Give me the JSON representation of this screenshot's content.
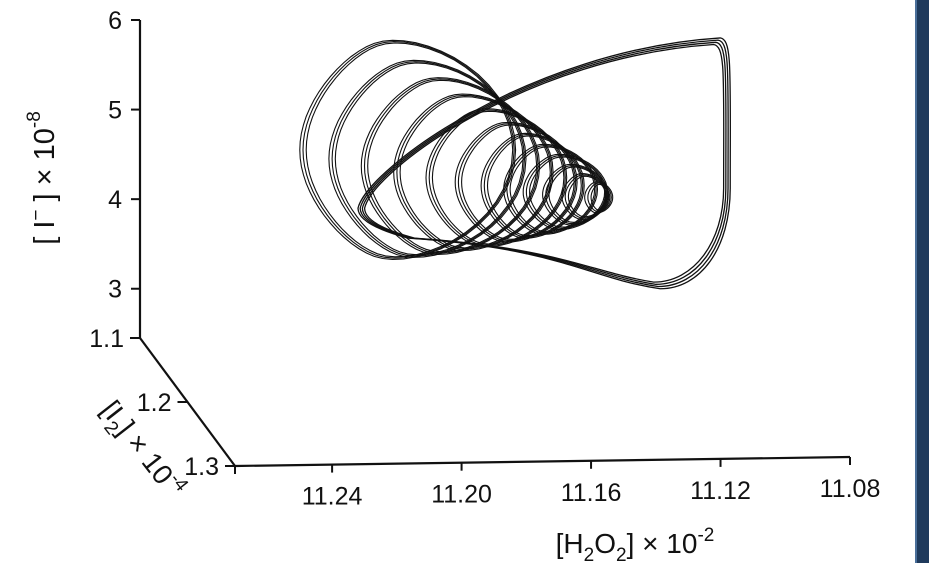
{
  "chart_data": {
    "type": "line",
    "subtype": "3d-phase-portrait",
    "title": "",
    "ink_color": "#111111",
    "frame_color": "#1f3a5c",
    "axes": {
      "x": {
        "label_parts": [
          "[H",
          "2",
          "O",
          "2",
          "] × 10",
          "-2"
        ],
        "ticks": [
          "11.24",
          "11.20",
          "11.16",
          "11.12",
          "11.08"
        ],
        "range": [
          11.27,
          11.08
        ],
        "reversed": true
      },
      "y": {
        "label_parts": [
          "[ I",
          "−",
          " ]  ×  10",
          "-8"
        ],
        "ticks": [
          "3",
          "4",
          "5",
          "6"
        ],
        "range": [
          2.45,
          6.0
        ]
      },
      "z": {
        "label_parts": [
          "[I",
          "2",
          "]  × 10",
          "-4"
        ],
        "ticks": [
          "1.1",
          "1.2",
          "1.3"
        ],
        "range": [
          1.1,
          1.3
        ]
      }
    },
    "series": [
      {
        "description_of_shape": "spiral trajectory converging to a limit cycle",
        "loops": [
          {
            "xc": 11.158,
            "yc": 4.02,
            "rx": 0.002,
            "ry": 0.14,
            "z": 1.205
          },
          {
            "xc": 11.163,
            "yc": 4.03,
            "rx": 0.004,
            "ry": 0.22,
            "z": 1.205
          },
          {
            "xc": 11.167,
            "yc": 4.05,
            "rx": 0.006,
            "ry": 0.3,
            "z": 1.205
          },
          {
            "xc": 11.171,
            "yc": 4.08,
            "rx": 0.008,
            "ry": 0.38,
            "z": 1.205
          },
          {
            "xc": 11.176,
            "yc": 4.11,
            "rx": 0.009,
            "ry": 0.46,
            "z": 1.205
          },
          {
            "xc": 11.182,
            "yc": 4.15,
            "rx": 0.01,
            "ry": 0.54,
            "z": 1.205
          },
          {
            "xc": 11.188,
            "yc": 4.19,
            "rx": 0.012,
            "ry": 0.62,
            "z": 1.205
          },
          {
            "xc": 11.195,
            "yc": 4.24,
            "rx": 0.014,
            "ry": 0.72,
            "z": 1.205
          },
          {
            "xc": 11.203,
            "yc": 4.3,
            "rx": 0.016,
            "ry": 0.82,
            "z": 1.205
          },
          {
            "xc": 11.211,
            "yc": 4.37,
            "rx": 0.018,
            "ry": 0.93,
            "z": 1.205
          },
          {
            "xc": 11.219,
            "yc": 4.45,
            "rx": 0.02,
            "ry": 1.04,
            "z": 1.205
          },
          {
            "xc": 11.226,
            "yc": 4.55,
            "rx": 0.022,
            "ry": 1.16,
            "z": 1.205
          }
        ],
        "limit_cycle_extent": {
          "x_min": 11.232,
          "x_max": 11.117,
          "y_min": 3.0,
          "y_max": 5.8
        }
      }
    ],
    "grid": false,
    "legend": "none"
  }
}
